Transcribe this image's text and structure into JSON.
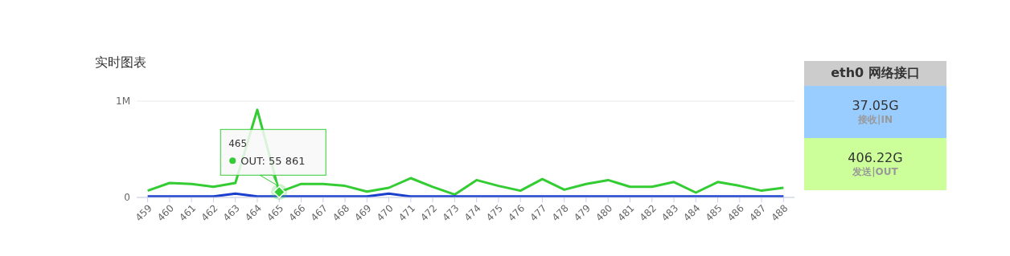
{
  "chart_data": [
    {
      "type": "line",
      "title": "实时图表",
      "categories": [
        "459",
        "460",
        "461",
        "462",
        "463",
        "464",
        "465",
        "466",
        "467",
        "468",
        "469",
        "470",
        "471",
        "472",
        "473",
        "474",
        "475",
        "476",
        "477",
        "478",
        "479",
        "480",
        "481",
        "482",
        "483",
        "484",
        "485",
        "486",
        "487",
        "488"
      ],
      "series": [
        {
          "color": "#33cc33",
          "values": [
            70000,
            150000,
            140000,
            110000,
            150000,
            910000,
            55861,
            140000,
            140000,
            120000,
            60000,
            100000,
            200000,
            110000,
            30000,
            180000,
            120000,
            70000,
            190000,
            80000,
            140000,
            180000,
            110000,
            110000,
            160000,
            50000,
            160000,
            120000,
            70000,
            100000
          ]
        },
        {
          "color": "#1a3fcc",
          "values": [
            10000,
            10000,
            10000,
            10000,
            40000,
            10000,
            10000,
            10000,
            10000,
            10000,
            10000,
            40000,
            10000,
            10000,
            10000,
            10000,
            10000,
            10000,
            10000,
            10000,
            10000,
            10000,
            10000,
            10000,
            10000,
            10000,
            10000,
            10000,
            10000,
            10000
          ]
        }
      ],
      "ylim": [
        0,
        1000000
      ],
      "yticks": [
        0,
        {
          "value": 1000000,
          "label": "1M"
        }
      ],
      "grid": "y",
      "marker": "none",
      "line_style": "solid",
      "annotations": [
        "465",
        {
          "text": "OUT: 55 861",
          "x": "465",
          "y": 55861
        }
      ]
    },
    {
      "type": "other",
      "title": "eth0 网络接口",
      "annotations": [
        "37.05G",
        "接收|IN",
        "406.22G",
        "发送|OUT"
      ],
      "colors": [
        "#cccccc",
        "#99ccff",
        "#ccff99"
      ]
    }
  ]
}
